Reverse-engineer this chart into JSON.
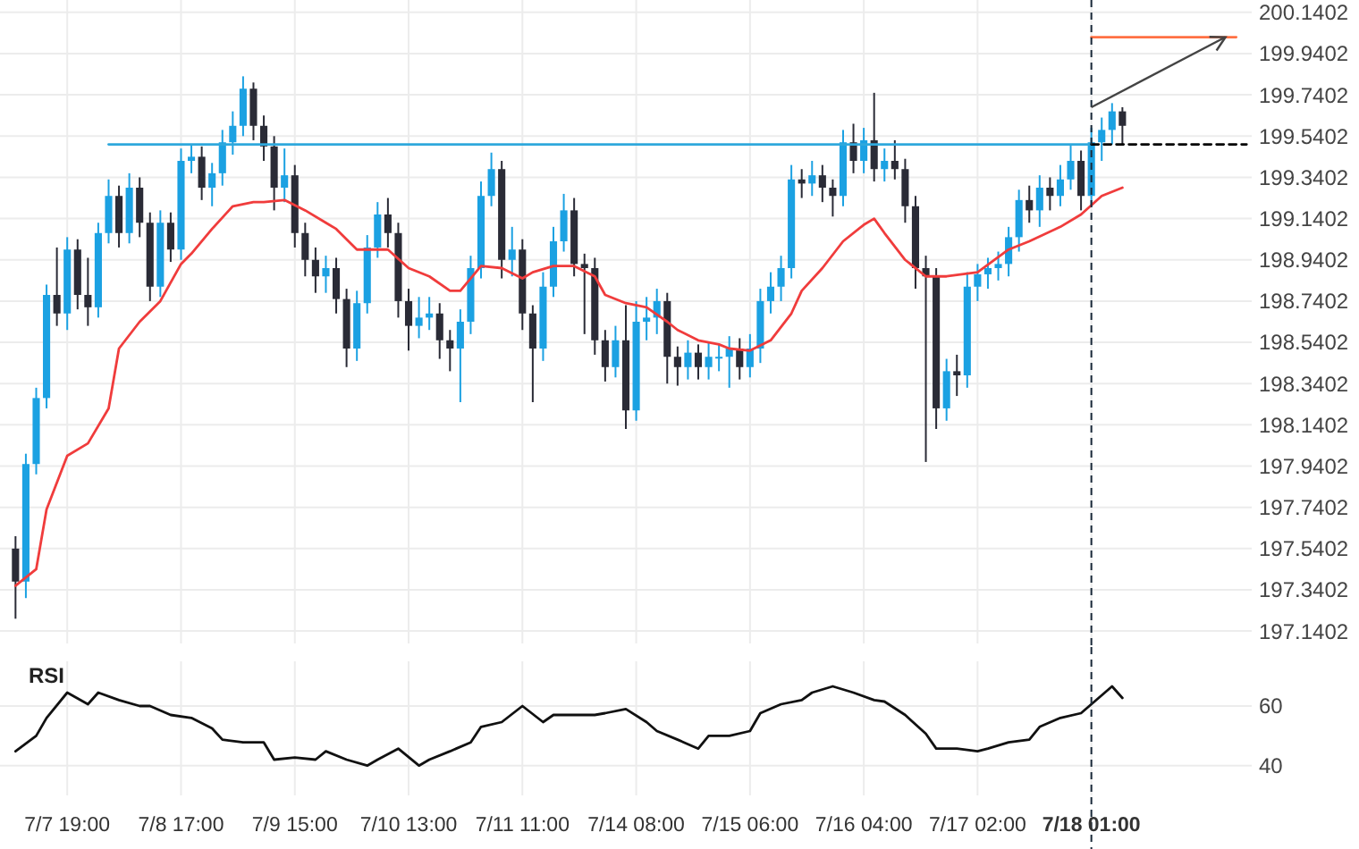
{
  "chart_data": [
    {
      "type": "candlestick",
      "colors": [
        null,
        "#2a2b36",
        "#1ba1e2",
        "#1ba1e2",
        "#1ba1e2",
        "#2a2b36",
        "#1ba1e2",
        "#2a2b36",
        "#2a2b36",
        "#1ba1e2",
        "#1ba1e2",
        "#2a2b36",
        "#1ba1e2",
        "#2a2b36",
        "#2a2b36",
        "#1ba1e2",
        "#2a2b36",
        "#1ba1e2",
        "#1ba1e2",
        "#2a2b36",
        "#1ba1e2",
        "#1ba1e2",
        "#1ba1e2",
        "#1ba1e2",
        "#2a2b36",
        "#2a2b36",
        "#2a2b36",
        "#1ba1e2",
        "#2a2b36",
        "#2a2b36",
        "#2a2b36",
        "#1ba1e2",
        "#2a2b36",
        "#2a2b36",
        "#1ba1e2",
        "#1ba1e2",
        "#1ba1e2",
        "#2a2b36",
        "#2a2b36",
        "#2a2b36",
        "#1ba1e2",
        "#1ba1e2",
        "#2a2b36",
        "#2a2b36",
        "#1ba1e2",
        "#1ba1e2",
        "#1ba1e2",
        "#1ba1e2",
        "#2a2b36",
        "#1ba1e2",
        "#2a2b36",
        "#2a2b36",
        "#1ba1e2",
        "#1ba1e2",
        "#1ba1e2",
        "#2a2b36",
        "#2a2b36",
        "#2a2b36",
        "#2a2b36",
        "#1ba1e2",
        "#2a2b36",
        "#1ba1e2",
        "#1ba1e2",
        "#1ba1e2",
        "#2a2b36",
        "#2a2b36",
        "#1ba1e2",
        "#2a2b36",
        "#1ba1e2",
        "#1ba1e2",
        "#1ba1e2",
        "#2a2b36",
        "#1ba1e2",
        "#1ba1e2",
        "#1ba1e2",
        "#1ba1e2",
        "#1ba1e2",
        "#2a2b36",
        "#1ba1e2",
        "#2a2b36",
        "#2a2b36",
        "#1ba1e2",
        "#2a2b36",
        "#1ba1e2",
        "#2a2b36",
        "#1ba1e2",
        "#2a2b36",
        "#2a2b36",
        "#2a2b36",
        "#2a2b36",
        "#2a2b36",
        "#1ba1e2",
        "#2a2b36",
        "#1ba1e2",
        "#1ba1e2",
        "#1ba1e2",
        "#1ba1e2",
        "#1ba1e2",
        "#1ba1e2",
        "#2a2b36",
        "#1ba1e2",
        "#2a2b36",
        "#1ba1e2",
        "#1ba1e2",
        "#2a2b36",
        "#1ba1e2",
        "#1ba1e2",
        "#1ba1e2",
        "#2a2b36",
        null,
        null,
        null,
        null,
        null,
        null,
        null,
        null,
        null,
        null,
        null,
        null
      ],
      "categories": [
        null,
        null,
        null,
        null,
        null,
        null,
        "7/7 19:00",
        null,
        null,
        null,
        null,
        null,
        null,
        null,
        null,
        null,
        null,
        "7/8 17:00",
        null,
        null,
        null,
        null,
        null,
        null,
        null,
        null,
        null,
        null,
        "7/9 15:00",
        null,
        null,
        null,
        null,
        null,
        null,
        null,
        null,
        null,
        null,
        "7/10 13:00",
        null,
        null,
        null,
        null,
        null,
        null,
        null,
        null,
        null,
        null,
        "7/11 11:00",
        null,
        null,
        null,
        null,
        null,
        null,
        null,
        null,
        null,
        null,
        "7/14 08:00",
        null,
        null,
        null,
        null,
        null,
        null,
        null,
        null,
        null,
        null,
        "7/15 06:00",
        null,
        null,
        null,
        null,
        null,
        null,
        null,
        null,
        null,
        null,
        "7/16 04:00",
        null,
        null,
        null,
        null,
        null,
        null,
        null,
        null,
        null,
        null,
        "7/17 02:00",
        null,
        null,
        null,
        null,
        null,
        null,
        null,
        null,
        null,
        null,
        "7/18 01:00",
        null,
        null,
        null,
        null,
        null,
        null,
        null,
        null,
        null,
        null,
        null,
        null,
        null,
        null,
        null
      ],
      "ohlc": [
        null,
        [
          197.54,
          197.6,
          197.2,
          197.38
        ],
        [
          197.38,
          198.0,
          197.3,
          197.95
        ],
        [
          197.95,
          198.32,
          197.9,
          198.27
        ],
        [
          198.27,
          198.82,
          198.22,
          198.77
        ],
        [
          198.77,
          199.0,
          198.62,
          198.68
        ],
        [
          198.68,
          199.05,
          198.6,
          198.99
        ],
        [
          198.99,
          199.04,
          198.7,
          198.77
        ],
        [
          198.77,
          198.95,
          198.62,
          198.71
        ],
        [
          198.71,
          199.12,
          198.66,
          199.07
        ],
        [
          199.07,
          199.33,
          199.02,
          199.25
        ],
        [
          199.25,
          199.3,
          199.0,
          199.07
        ],
        [
          199.07,
          199.36,
          199.02,
          199.29
        ],
        [
          199.29,
          199.34,
          199.05,
          199.12
        ],
        [
          199.12,
          199.17,
          198.74,
          198.81
        ],
        [
          198.81,
          199.18,
          198.76,
          199.12
        ],
        [
          199.12,
          199.17,
          198.93,
          198.99
        ],
        [
          198.99,
          199.48,
          198.94,
          199.42
        ],
        [
          199.42,
          199.5,
          199.36,
          199.44
        ],
        [
          199.44,
          199.49,
          199.23,
          199.29
        ],
        [
          199.29,
          199.41,
          199.2,
          199.36
        ],
        [
          199.36,
          199.57,
          199.3,
          199.51
        ],
        [
          199.51,
          199.66,
          199.45,
          199.59
        ],
        [
          199.59,
          199.83,
          199.54,
          199.77
        ],
        [
          199.77,
          199.8,
          199.52,
          199.59
        ],
        [
          199.59,
          199.64,
          199.42,
          199.49
        ],
        [
          199.49,
          199.54,
          199.18,
          199.29
        ],
        [
          199.29,
          199.48,
          199.22,
          199.35
        ],
        [
          199.35,
          199.4,
          199.0,
          199.07
        ],
        [
          199.07,
          199.12,
          198.86,
          198.94
        ],
        [
          198.94,
          199.0,
          198.78,
          198.86
        ],
        [
          198.86,
          198.96,
          198.78,
          198.9
        ],
        [
          198.9,
          198.95,
          198.68,
          198.75
        ],
        [
          198.75,
          198.8,
          198.42,
          198.51
        ],
        [
          198.51,
          198.79,
          198.45,
          198.73
        ],
        [
          198.73,
          199.06,
          198.68,
          199.0
        ],
        [
          199.0,
          199.22,
          198.95,
          199.16
        ],
        [
          199.16,
          199.24,
          199.0,
          199.07
        ],
        [
          199.07,
          199.12,
          198.66,
          198.74
        ],
        [
          198.74,
          198.8,
          198.5,
          198.62
        ],
        [
          198.62,
          198.76,
          198.56,
          198.66
        ],
        [
          198.66,
          198.76,
          198.6,
          198.68
        ],
        [
          198.68,
          198.73,
          198.46,
          198.55
        ],
        [
          198.55,
          198.6,
          198.4,
          198.51
        ],
        [
          198.51,
          198.7,
          198.25,
          198.64
        ],
        [
          198.64,
          198.96,
          198.58,
          198.9
        ],
        [
          198.9,
          199.32,
          198.85,
          199.25
        ],
        [
          199.25,
          199.46,
          199.2,
          199.38
        ],
        [
          199.38,
          199.42,
          198.85,
          198.94
        ],
        [
          198.94,
          199.1,
          198.86,
          198.99
        ],
        [
          198.99,
          199.04,
          198.6,
          198.68
        ],
        [
          198.68,
          198.72,
          198.25,
          198.51
        ],
        [
          198.51,
          198.88,
          198.45,
          198.81
        ],
        [
          198.81,
          199.1,
          198.76,
          199.03
        ],
        [
          199.03,
          199.26,
          198.98,
          199.18
        ],
        [
          199.18,
          199.24,
          198.86,
          198.92
        ],
        [
          198.92,
          198.97,
          198.58,
          198.9
        ],
        [
          198.9,
          198.95,
          198.48,
          198.55
        ],
        [
          198.55,
          198.6,
          198.35,
          198.42
        ],
        [
          198.42,
          198.62,
          198.37,
          198.55
        ],
        [
          198.55,
          198.72,
          198.12,
          198.21
        ],
        [
          198.21,
          198.74,
          198.16,
          198.64
        ],
        [
          198.64,
          198.76,
          198.55,
          198.66
        ],
        [
          198.66,
          198.8,
          198.58,
          198.74
        ],
        [
          198.74,
          198.78,
          198.34,
          198.47
        ],
        [
          198.47,
          198.52,
          198.33,
          198.42
        ],
        [
          198.42,
          198.55,
          198.36,
          198.49
        ],
        [
          198.49,
          198.53,
          198.36,
          198.42
        ],
        [
          198.42,
          198.54,
          198.36,
          198.47
        ],
        [
          198.47,
          198.53,
          198.4,
          198.47
        ],
        [
          198.47,
          198.57,
          198.32,
          198.51
        ],
        [
          198.51,
          198.56,
          198.36,
          198.42
        ],
        [
          198.42,
          198.58,
          198.37,
          198.51
        ],
        [
          198.51,
          198.8,
          198.44,
          198.74
        ],
        [
          198.74,
          198.88,
          198.68,
          198.81
        ],
        [
          198.81,
          198.96,
          198.74,
          198.9
        ],
        [
          198.9,
          199.4,
          198.85,
          199.33
        ],
        [
          199.33,
          199.38,
          199.24,
          199.31
        ],
        [
          199.31,
          199.42,
          199.25,
          199.35
        ],
        [
          199.35,
          199.4,
          199.22,
          199.29
        ],
        [
          199.29,
          199.33,
          199.15,
          199.25
        ],
        [
          199.25,
          199.57,
          199.2,
          199.51
        ],
        [
          199.51,
          199.6,
          199.36,
          199.42
        ],
        [
          199.42,
          199.58,
          199.36,
          199.52
        ],
        [
          199.52,
          199.75,
          199.32,
          199.38
        ],
        [
          199.38,
          199.48,
          199.32,
          199.42
        ],
        [
          199.42,
          199.52,
          199.33,
          199.38
        ],
        [
          199.38,
          199.43,
          199.12,
          199.2
        ],
        [
          199.2,
          199.25,
          198.8,
          198.9
        ],
        [
          198.9,
          198.96,
          197.96,
          198.86
        ],
        [
          198.86,
          198.9,
          198.12,
          198.22
        ],
        [
          198.22,
          198.46,
          198.16,
          198.4
        ],
        [
          198.4,
          198.48,
          198.28,
          198.38
        ],
        [
          198.38,
          198.88,
          198.32,
          198.81
        ],
        [
          198.81,
          198.92,
          198.74,
          198.87
        ],
        [
          198.87,
          198.95,
          198.8,
          198.9
        ],
        [
          198.9,
          198.98,
          198.84,
          198.92
        ],
        [
          198.92,
          199.1,
          198.86,
          199.05
        ],
        [
          199.05,
          199.28,
          198.98,
          199.23
        ],
        [
          199.23,
          199.3,
          199.12,
          199.18
        ],
        [
          199.18,
          199.35,
          199.1,
          199.29
        ],
        [
          199.29,
          199.34,
          199.18,
          199.25
        ],
        [
          199.25,
          199.4,
          199.2,
          199.33
        ],
        [
          199.33,
          199.5,
          199.28,
          199.42
        ],
        [
          199.42,
          199.47,
          199.18,
          199.25
        ],
        [
          199.25,
          199.58,
          199.2,
          199.51
        ],
        [
          199.51,
          199.63,
          199.42,
          199.57
        ],
        [
          199.57,
          199.7,
          199.5,
          199.66
        ],
        [
          199.66,
          199.68,
          199.5,
          199.59
        ],
        null,
        null,
        null,
        null,
        null,
        null,
        null,
        null,
        null,
        null,
        null,
        null
      ],
      "series": [
        {
          "type": "line",
          "color": "#f03c3c",
          "values": [
            null,
            197.36,
            null,
            197.44,
            197.73,
            null,
            197.99,
            null,
            198.05,
            null,
            198.22,
            198.51,
            null,
            198.64,
            null,
            198.74,
            null,
            198.92,
            198.97,
            null,
            199.09,
            null,
            199.2,
            null,
            199.22,
            199.22,
            null,
            199.23,
            null,
            199.18,
            null,
            199.12,
            199.09,
            null,
            198.99,
            null,
            198.99,
            198.99,
            null,
            198.9,
            null,
            198.86,
            null,
            198.79,
            198.79,
            null,
            198.91,
            null,
            198.9,
            null,
            198.85,
            198.88,
            null,
            198.91,
            null,
            198.91,
            null,
            198.86,
            198.77,
            null,
            198.73,
            null,
            198.71,
            null,
            198.64,
            198.6,
            null,
            198.55,
            null,
            198.53,
            198.51,
            null,
            198.5,
            null,
            198.55,
            null,
            198.68,
            198.79,
            null,
            198.9,
            null,
            199.03,
            null,
            199.11,
            199.14,
            199.07,
            null,
            198.94,
            null,
            198.86,
            null,
            198.86,
            null,
            null,
            198.88,
            null,
            null,
            198.99,
            null,
            199.03,
            null,
            null,
            199.1,
            null,
            199.16,
            null,
            199.25,
            null,
            199.29,
            null,
            null,
            null,
            null,
            null,
            null,
            null,
            null,
            null,
            null,
            null,
            null
          ]
        },
        {
          "type": "line",
          "color": "#2fa8dc",
          "values": [
            null,
            null,
            null,
            null,
            null,
            null,
            null,
            null,
            null,
            null,
            199.5,
            199.5,
            199.5,
            199.5,
            199.5,
            199.5,
            199.5,
            199.5,
            199.5,
            199.5,
            199.5,
            199.5,
            199.5,
            199.5,
            199.5,
            199.5,
            199.5,
            199.5,
            199.5,
            199.5,
            199.5,
            199.5,
            199.5,
            199.5,
            199.5,
            199.5,
            199.5,
            199.5,
            199.5,
            199.5,
            199.5,
            199.5,
            199.5,
            199.5,
            199.5,
            199.5,
            199.5,
            199.5,
            199.5,
            199.5,
            199.5,
            199.5,
            199.5,
            199.5,
            199.5,
            199.5,
            199.5,
            199.5,
            199.5,
            199.5,
            199.5,
            199.5,
            199.5,
            199.5,
            199.5,
            199.5,
            199.5,
            199.5,
            199.5,
            199.5,
            199.5,
            199.5,
            199.5,
            199.5,
            199.5,
            199.5,
            199.5,
            199.5,
            199.5,
            199.5,
            199.5,
            199.5,
            199.5,
            199.5,
            199.5,
            199.5,
            199.5,
            199.5,
            199.5,
            199.5,
            199.5,
            199.5,
            199.5,
            199.5,
            199.5,
            199.5,
            199.5,
            199.5,
            199.5,
            199.5,
            199.5,
            199.5,
            199.5,
            199.5,
            199.5,
            199.5,
            null,
            null,
            null,
            null,
            null,
            null,
            null,
            null,
            null,
            null,
            null,
            null,
            null,
            null,
            null
          ]
        },
        {
          "type": "line",
          "color": "#000000",
          "line_style": "dashed",
          "values": [
            null,
            null,
            null,
            null,
            null,
            null,
            null,
            null,
            null,
            null,
            null,
            null,
            null,
            null,
            null,
            null,
            null,
            null,
            null,
            null,
            null,
            null,
            null,
            null,
            null,
            null,
            null,
            null,
            null,
            null,
            null,
            null,
            null,
            null,
            null,
            null,
            null,
            null,
            null,
            null,
            null,
            null,
            null,
            null,
            null,
            null,
            null,
            null,
            null,
            null,
            null,
            null,
            null,
            null,
            null,
            null,
            null,
            null,
            null,
            null,
            null,
            null,
            null,
            null,
            null,
            null,
            null,
            null,
            null,
            null,
            null,
            null,
            null,
            null,
            null,
            null,
            null,
            null,
            null,
            null,
            null,
            null,
            null,
            null,
            null,
            null,
            null,
            null,
            null,
            null,
            null,
            null,
            null,
            null,
            null,
            null,
            null,
            null,
            null,
            null,
            null,
            null,
            null,
            null,
            null,
            199.5,
            199.5,
            199.5,
            199.5,
            199.5,
            199.5,
            199.5,
            199.5,
            199.5,
            199.5,
            199.5,
            199.5,
            199.5,
            199.5,
            199.5,
            199.5
          ]
        },
        {
          "type": "line",
          "color": "#ff7043",
          "values": [
            null,
            null,
            null,
            null,
            null,
            null,
            null,
            null,
            null,
            null,
            null,
            null,
            null,
            null,
            null,
            null,
            null,
            null,
            null,
            null,
            null,
            null,
            null,
            null,
            null,
            null,
            null,
            null,
            null,
            null,
            null,
            null,
            null,
            null,
            null,
            null,
            null,
            null,
            null,
            null,
            null,
            null,
            null,
            null,
            null,
            null,
            null,
            null,
            null,
            null,
            null,
            null,
            null,
            null,
            null,
            null,
            null,
            null,
            null,
            null,
            null,
            null,
            null,
            null,
            null,
            null,
            null,
            null,
            null,
            null,
            null,
            null,
            null,
            null,
            null,
            null,
            null,
            null,
            null,
            null,
            null,
            null,
            null,
            null,
            null,
            null,
            null,
            null,
            null,
            null,
            null,
            null,
            null,
            null,
            null,
            null,
            null,
            null,
            null,
            null,
            null,
            null,
            null,
            null,
            null,
            200.02,
            200.02,
            200.02,
            200.02,
            200.02,
            200.02,
            200.02,
            200.02,
            200.02,
            200.02,
            200.02,
            200.02,
            200.02,
            200.02,
            200.02,
            null
          ]
        }
      ],
      "ylim": [
        197.08,
        200.2
      ],
      "yticks": [
        197.1402,
        197.3402,
        197.5402,
        197.7402,
        197.9402,
        198.1402,
        198.3402,
        198.5402,
        198.7402,
        198.9402,
        199.1402,
        199.3402,
        199.5402,
        199.7402,
        199.9402,
        200.1402
      ],
      "grid": true,
      "tick_labels": "y",
      "ref_lines": [
        {
          "axis": "x",
          "value": "7/18 01:00",
          "line_style": "dashed",
          "color": "#1a2a3a"
        }
      ]
    },
    {
      "type": "line",
      "title": "RSI",
      "categories": [
        null,
        null,
        null,
        null,
        null,
        null,
        "7/7 19:00",
        null,
        null,
        null,
        null,
        null,
        null,
        null,
        null,
        null,
        null,
        "7/8 17:00",
        null,
        null,
        null,
        null,
        null,
        null,
        null,
        null,
        null,
        null,
        "7/9 15:00",
        null,
        null,
        null,
        null,
        null,
        null,
        null,
        null,
        null,
        null,
        "7/10 13:00",
        null,
        null,
        null,
        null,
        null,
        null,
        null,
        null,
        null,
        null,
        "7/11 11:00",
        null,
        null,
        null,
        null,
        null,
        null,
        null,
        null,
        null,
        null,
        "7/14 08:00",
        null,
        null,
        null,
        null,
        null,
        null,
        null,
        null,
        null,
        null,
        "7/15 06:00",
        null,
        null,
        null,
        null,
        null,
        null,
        null,
        null,
        null,
        null,
        "7/16 04:00",
        null,
        null,
        null,
        null,
        null,
        null,
        null,
        null,
        null,
        null,
        "7/17 02:00",
        null,
        null,
        null,
        null,
        null,
        null,
        null,
        null,
        null,
        null,
        "7/18 01:00",
        null,
        null,
        null,
        null,
        null,
        null,
        null,
        null,
        null,
        null,
        null,
        null,
        null,
        null,
        null
      ],
      "series": [
        {
          "color": "#111111",
          "values": [
            null,
            44.8,
            null,
            50,
            56,
            null,
            64.5,
            null,
            60.6,
            64.5,
            null,
            62,
            null,
            60,
            60,
            null,
            57,
            null,
            56,
            null,
            52.5,
            48.7,
            null,
            47.8,
            null,
            47.8,
            42,
            null,
            42.7,
            null,
            42,
            44.8,
            null,
            42,
            null,
            40,
            42,
            null,
            45.7,
            null,
            40,
            42,
            null,
            44.8,
            null,
            47.8,
            53,
            null,
            54.6,
            null,
            60,
            null,
            54.6,
            57,
            null,
            57,
            null,
            57,
            57.6,
            null,
            59,
            null,
            54.6,
            51.6,
            null,
            48.7,
            null,
            45.7,
            50,
            null,
            50,
            null,
            51.6,
            57.6,
            null,
            60.6,
            null,
            62,
            64.5,
            null,
            66.6,
            null,
            64.5,
            null,
            62,
            61.5,
            null,
            57,
            null,
            50.7,
            45.7,
            null,
            45.7,
            null,
            44.8,
            45.7,
            null,
            47.8,
            null,
            48.7,
            53,
            null,
            56,
            null,
            57.6,
            60.6,
            null,
            66.6,
            62.7,
            null,
            null,
            null,
            null,
            null,
            null,
            null,
            null,
            null,
            null,
            null,
            null
          ]
        }
      ],
      "ylim": [
        30,
        75
      ],
      "yticks": [
        40,
        60
      ],
      "grid": true,
      "ref_lines": [
        {
          "axis": "x",
          "value": "7/18 01:00",
          "line_style": "dashed",
          "color": "#1a2a3a"
        }
      ]
    }
  ]
}
